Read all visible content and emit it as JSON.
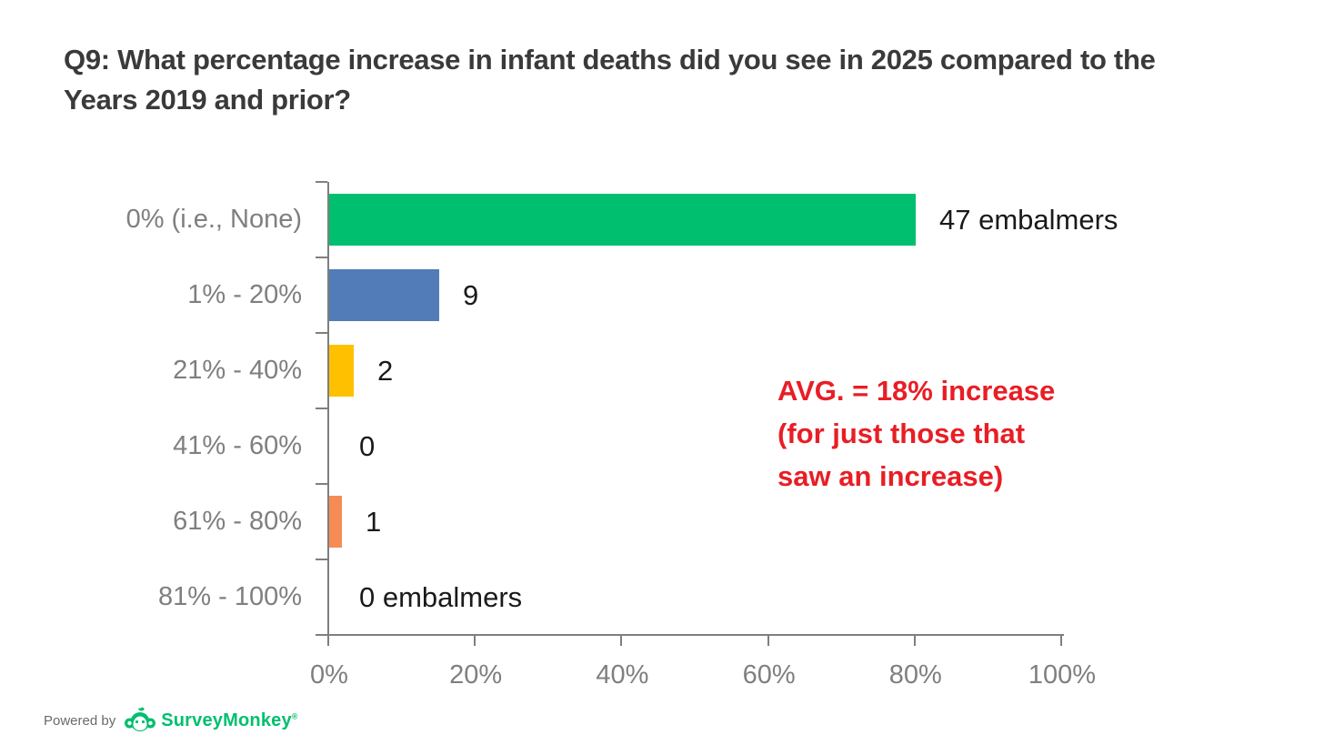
{
  "chart_data": {
    "type": "bar",
    "orientation": "horizontal",
    "title": "Q9: What percentage increase in infant deaths did you see in 2025 compared to the Years 2019 and prior?",
    "categories": [
      "0% (i.e., None)",
      "1% - 20%",
      "21% - 40%",
      "41% - 60%",
      "61% - 80%",
      "81% - 100%"
    ],
    "values": [
      47,
      9,
      2,
      0,
      1,
      0
    ],
    "value_labels": [
      "47 embalmers",
      "9",
      "2",
      "0",
      "1",
      "0 embalmers"
    ],
    "bar_pct": [
      80.0,
      15.0,
      3.35,
      0,
      1.74,
      0
    ],
    "bar_colors": [
      "#00BF6F",
      "#527CB8",
      "#FFC000",
      "#FFFFFF",
      "#F68C55",
      "#FFFFFF"
    ],
    "x_ticks": [
      "0%",
      "20%",
      "40%",
      "60%",
      "80%",
      "100%"
    ],
    "xlim": [
      0,
      100
    ],
    "grid": false,
    "legend": "none",
    "axis_color": "#7f7f7f",
    "annotation": {
      "lines": [
        "AVG. = 18% increase",
        "(for just those that",
        "saw an increase)"
      ],
      "color": "#E81E25"
    }
  },
  "footer": {
    "powered_by": "Powered by",
    "brand": "SurveyMonkey",
    "brand_mark": "®",
    "brand_color": "#00BF6F"
  }
}
